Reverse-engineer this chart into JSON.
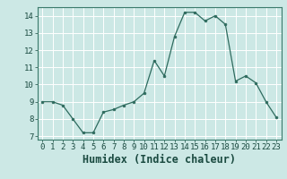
{
  "x": [
    0,
    1,
    2,
    3,
    4,
    5,
    6,
    7,
    8,
    9,
    10,
    11,
    12,
    13,
    14,
    15,
    16,
    17,
    18,
    19,
    20,
    21,
    22,
    23
  ],
  "y": [
    9.0,
    9.0,
    8.8,
    8.0,
    7.2,
    7.2,
    8.4,
    8.55,
    8.8,
    9.0,
    9.5,
    11.4,
    10.5,
    12.8,
    14.2,
    14.2,
    13.7,
    14.0,
    13.5,
    10.2,
    10.5,
    10.1,
    9.0,
    8.1
  ],
  "xlabel": "Humidex (Indice chaleur)",
  "ylim": [
    6.8,
    14.5
  ],
  "xlim": [
    -0.5,
    23.5
  ],
  "yticks": [
    7,
    8,
    9,
    10,
    11,
    12,
    13,
    14
  ],
  "xticks": [
    0,
    1,
    2,
    3,
    4,
    5,
    6,
    7,
    8,
    9,
    10,
    11,
    12,
    13,
    14,
    15,
    16,
    17,
    18,
    19,
    20,
    21,
    22,
    23
  ],
  "line_color": "#2e6b5e",
  "marker_color": "#2e6b5e",
  "bg_color": "#cce8e5",
  "grid_color": "#ffffff",
  "tick_fontsize": 6.5,
  "xlabel_fontsize": 8.5
}
